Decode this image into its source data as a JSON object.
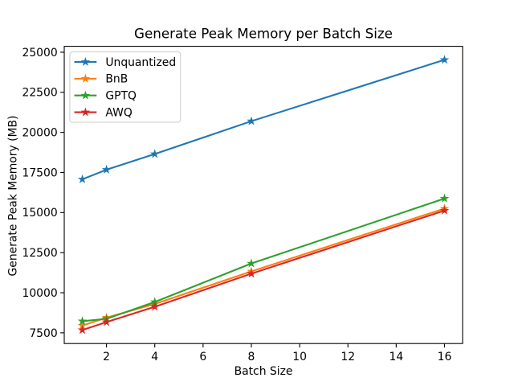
{
  "chart_data": {
    "type": "line",
    "title": "Generate Peak Memory per Batch Size",
    "xlabel": "Batch Size",
    "ylabel": "Generate Peak Memory (MB)",
    "x": [
      1,
      2,
      4,
      8,
      16
    ],
    "series": [
      {
        "name": "Unquantized",
        "color": "#1f77b4",
        "marker": "star",
        "values": [
          17075,
          17675,
          18650,
          20700,
          24525
        ]
      },
      {
        "name": "BnB",
        "color": "#ff7f0e",
        "marker": "star",
        "values": [
          7950,
          8450,
          9300,
          11330,
          15250
        ]
      },
      {
        "name": "GPTQ",
        "color": "#2ca02c",
        "marker": "star",
        "values": [
          8225,
          8375,
          9425,
          11825,
          15875
        ]
      },
      {
        "name": "AWQ",
        "color": "#d62728",
        "marker": "star",
        "values": [
          7675,
          8170,
          9125,
          11190,
          15125
        ]
      }
    ],
    "xlim": [
      0.25,
      16.75
    ],
    "ylim": [
      6832,
      25368
    ],
    "xticks": [
      2,
      4,
      6,
      8,
      10,
      12,
      14,
      16
    ],
    "yticks": [
      7500,
      10000,
      12500,
      15000,
      17500,
      20000,
      22500,
      25000
    ],
    "grid": false,
    "legend": {
      "position": "upper-left",
      "entries": [
        "Unquantized",
        "BnB",
        "GPTQ",
        "AWQ"
      ],
      "border_color": "#cccccc",
      "background": "#ffffff"
    },
    "colors": {
      "spine": "#000000",
      "text": "#000000",
      "background": "#ffffff"
    }
  }
}
